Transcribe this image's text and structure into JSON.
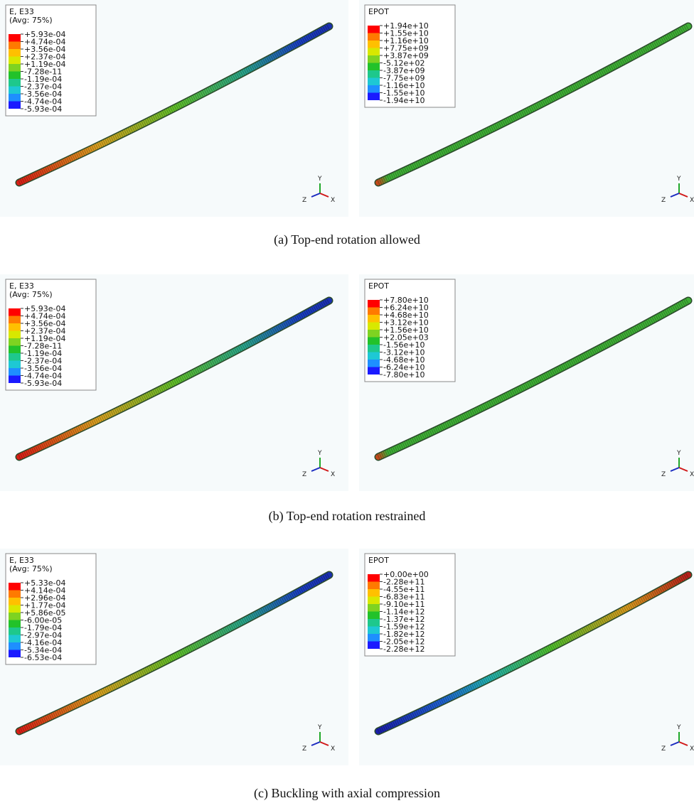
{
  "figures": [
    {
      "caption": "(a) Top-end rotation allowed",
      "panels": [
        {
          "legend": {
            "title": [
              "E, E33",
              "(Avg: 75%)"
            ],
            "labels": [
              "+5.93e-04",
              "+4.74e-04",
              "+3.56e-04",
              "+2.37e-04",
              "+1.19e-04",
              "-7.28e-11",
              "-1.19e-04",
              "-2.37e-04",
              "-3.56e-04",
              "-4.74e-04",
              "-5.93e-04"
            ]
          }
        },
        {
          "legend": {
            "title": [
              "EPOT"
            ],
            "labels": [
              "+1.94e+10",
              "+1.55e+10",
              "+1.16e+10",
              "+7.75e+09",
              "+3.87e+09",
              "-5.12e+02",
              "-3.87e+09",
              "-7.75e+09",
              "-1.16e+10",
              "-1.55e+10",
              "-1.94e+10"
            ]
          }
        }
      ]
    },
    {
      "caption": "(b) Top-end rotation restrained",
      "panels": [
        {
          "legend": {
            "title": [
              "E, E33",
              "(Avg: 75%)"
            ],
            "labels": [
              "+5.93e-04",
              "+4.74e-04",
              "+3.56e-04",
              "+2.37e-04",
              "+1.19e-04",
              "-7.28e-11",
              "-1.19e-04",
              "-2.37e-04",
              "-3.56e-04",
              "-4.74e-04",
              "-5.93e-04"
            ]
          }
        },
        {
          "legend": {
            "title": [
              "EPOT"
            ],
            "labels": [
              "+7.80e+10",
              "+6.24e+10",
              "+4.68e+10",
              "+3.12e+10",
              "+1.56e+10",
              "+2.05e+03",
              "-1.56e+10",
              "-3.12e+10",
              "-4.68e+10",
              "-6.24e+10",
              "-7.80e+10"
            ]
          }
        }
      ]
    },
    {
      "caption": "(c) Buckling with axial compression",
      "panels": [
        {
          "legend": {
            "title": [
              "E, E33",
              "(Avg: 75%)"
            ],
            "labels": [
              "+5.33e-04",
              "+4.14e-04",
              "+2.96e-04",
              "+1.77e-04",
              "+5.86e-05",
              "-6.00e-05",
              "-1.79e-04",
              "-2.97e-04",
              "-4.16e-04",
              "-5.34e-04",
              "-6.53e-04"
            ]
          }
        },
        {
          "legend": {
            "title": [
              "EPOT"
            ],
            "labels": [
              "+0.00e+00",
              "-2.28e+11",
              "-4.55e+11",
              "-6.83e+11",
              "-9.10e+11",
              "-1.14e+12",
              "-1.37e+12",
              "-1.59e+12",
              "-1.82e+12",
              "-2.05e+12",
              "-2.28e+12"
            ]
          }
        }
      ]
    }
  ],
  "triad": {
    "x": "X",
    "y": "Y",
    "z": "Z"
  }
}
